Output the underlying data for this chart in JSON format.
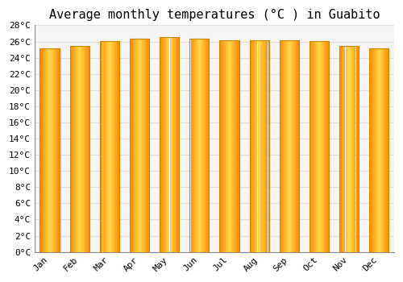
{
  "title": "Average monthly temperatures (°C ) in Guabito",
  "months": [
    "Jan",
    "Feb",
    "Mar",
    "Apr",
    "May",
    "Jun",
    "Jul",
    "Aug",
    "Sep",
    "Oct",
    "Nov",
    "Dec"
  ],
  "values": [
    25.2,
    25.5,
    26.1,
    26.4,
    26.6,
    26.4,
    26.2,
    26.2,
    26.2,
    26.1,
    25.5,
    25.2
  ],
  "bar_color_center": "#FFA500",
  "bar_color_edge": "#FF8C00",
  "bar_color_light": "#FFD04A",
  "bar_edge_color": "#CC8800",
  "ylim": [
    0,
    28
  ],
  "yticks": [
    0,
    2,
    4,
    6,
    8,
    10,
    12,
    14,
    16,
    18,
    20,
    22,
    24,
    26,
    28
  ],
  "ytick_labels": [
    "0°C",
    "2°C",
    "4°C",
    "6°C",
    "8°C",
    "10°C",
    "12°C",
    "14°C",
    "16°C",
    "18°C",
    "20°C",
    "22°C",
    "24°C",
    "26°C",
    "28°C"
  ],
  "background_color": "#FFFFFF",
  "plot_bg_color": "#F5F5F5",
  "grid_color": "#E0E0E0",
  "title_fontsize": 11,
  "tick_fontsize": 8,
  "font_family": "monospace",
  "bar_width": 0.65
}
